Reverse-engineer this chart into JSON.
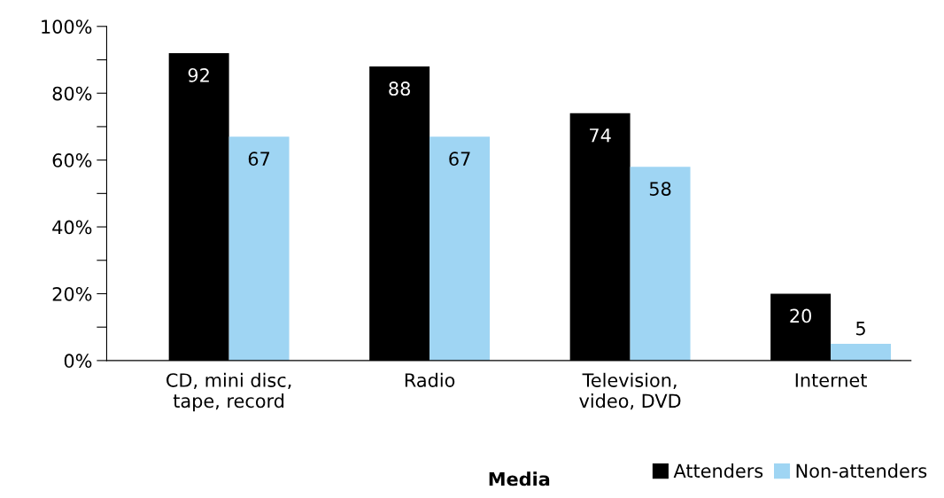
{
  "chart_data": {
    "type": "bar",
    "xlabel": "Media",
    "categories": [
      "CD, mini disc,\ntape, record",
      "Radio",
      "Television,\nvideo, DVD",
      "Internet"
    ],
    "series": [
      {
        "name": "Attenders",
        "color": "#000000",
        "values": [
          92,
          88,
          74,
          20
        ]
      },
      {
        "name": "Non-attenders",
        "color": "#9fd5f3",
        "values": [
          67,
          67,
          58,
          5
        ]
      }
    ],
    "ylim": [
      0,
      100
    ],
    "yticks": [
      {
        "value": 0,
        "label": "0%"
      },
      {
        "value": 10,
        "label": null
      },
      {
        "value": 20,
        "label": "20%"
      },
      {
        "value": 30,
        "label": null
      },
      {
        "value": 40,
        "label": "40%"
      },
      {
        "value": 50,
        "label": null
      },
      {
        "value": 60,
        "label": "60%"
      },
      {
        "value": 70,
        "label": null
      },
      {
        "value": 80,
        "label": "80%"
      },
      {
        "value": 90,
        "label": null
      },
      {
        "value": 100,
        "label": "100%"
      }
    ],
    "data_labels": true,
    "legend": "bottom right",
    "grid": false
  }
}
